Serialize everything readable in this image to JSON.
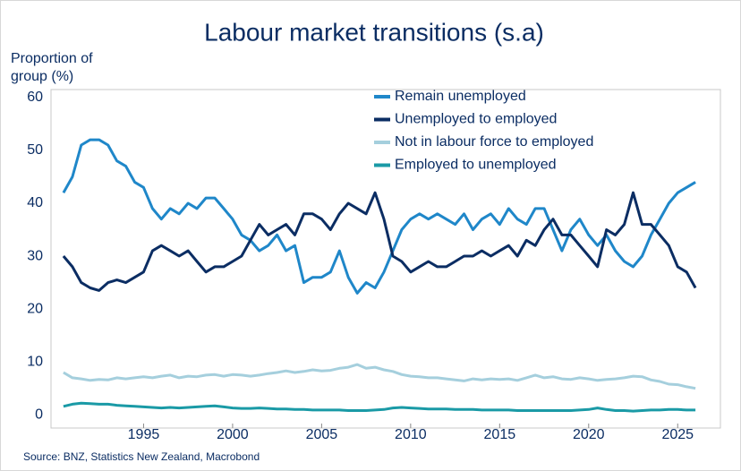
{
  "chart_data": {
    "type": "line",
    "title": "Labour market transitions (s.a)",
    "ylabel_lines": [
      "Proportion of",
      "group (%)"
    ],
    "source": "Source: BNZ, Statistics New Zealand, Macrobond",
    "x": [
      1990.5,
      1991,
      1991.5,
      1992,
      1992.5,
      1993,
      1993.5,
      1994,
      1994.5,
      1995,
      1995.5,
      1996,
      1996.5,
      1997,
      1997.5,
      1998,
      1998.5,
      1999,
      1999.5,
      2000,
      2000.5,
      2001,
      2001.5,
      2002,
      2002.5,
      2003,
      2003.5,
      2004,
      2004.5,
      2005,
      2005.5,
      2006,
      2006.5,
      2007,
      2007.5,
      2008,
      2008.5,
      2009,
      2009.5,
      2010,
      2010.5,
      2011,
      2011.5,
      2012,
      2012.5,
      2013,
      2013.5,
      2014,
      2014.5,
      2015,
      2015.5,
      2016,
      2016.5,
      2017,
      2017.5,
      2018,
      2018.5,
      2019,
      2019.5,
      2020,
      2020.5,
      2021,
      2021.5,
      2022,
      2022.5,
      2023,
      2023.5,
      2024,
      2024.5,
      2025,
      2025.5,
      2026
    ],
    "series": [
      {
        "name": "Remain unemployed",
        "color": "#1f87c9",
        "values": [
          42,
          45,
          51,
          52,
          52,
          51,
          48,
          47,
          44,
          43,
          39,
          37,
          39,
          38,
          40,
          39,
          41,
          41,
          39,
          37,
          34,
          33,
          31,
          32,
          34,
          31,
          32,
          25,
          26,
          26,
          27,
          31,
          26,
          23,
          25,
          24,
          27,
          31,
          35,
          37,
          38,
          37,
          38,
          37,
          36,
          38,
          35,
          37,
          38,
          36,
          39,
          37,
          36,
          39,
          39,
          35,
          31,
          35,
          37,
          34,
          32,
          34,
          31,
          29,
          28,
          30,
          34,
          37,
          40,
          42,
          43,
          44
        ]
      },
      {
        "name": "Unemployed to employed",
        "color": "#0b2d63",
        "values": [
          30,
          28,
          25,
          24,
          23.5,
          25,
          25.5,
          25,
          26,
          27,
          31,
          32,
          31,
          30,
          31,
          29,
          27,
          28,
          28,
          29,
          30,
          33,
          36,
          34,
          35,
          36,
          34,
          38,
          38,
          37,
          35,
          38,
          40,
          39,
          38,
          42,
          37,
          30,
          29,
          27,
          28,
          29,
          28,
          28,
          29,
          30,
          30,
          31,
          30,
          31,
          32,
          30,
          33,
          32,
          35,
          37,
          34,
          34,
          32,
          30,
          28,
          35,
          34,
          36,
          42,
          36,
          36,
          34,
          32,
          28,
          27,
          24
        ]
      },
      {
        "name": "Not in labour force to employed",
        "color": "#a5cfdd",
        "values": [
          8,
          7,
          6.8,
          6.5,
          6.7,
          6.6,
          7,
          6.8,
          7,
          7.2,
          7,
          7.3,
          7.5,
          7,
          7.3,
          7.2,
          7.5,
          7.6,
          7.3,
          7.6,
          7.5,
          7.3,
          7.5,
          7.8,
          8,
          8.3,
          8,
          8.2,
          8.5,
          8.3,
          8.4,
          8.8,
          9,
          9.5,
          8.8,
          9,
          8.5,
          8.2,
          7.6,
          7.3,
          7.2,
          7,
          7,
          6.8,
          6.6,
          6.4,
          6.8,
          6.6,
          6.8,
          6.7,
          6.8,
          6.5,
          7,
          7.5,
          7,
          7.2,
          6.8,
          6.7,
          7,
          6.8,
          6.5,
          6.7,
          6.8,
          7,
          7.3,
          7.2,
          6.6,
          6.3,
          5.8,
          5.7,
          5.3,
          5
        ]
      },
      {
        "name": "Employed to unemployed",
        "color": "#1a9aa6",
        "values": [
          1.6,
          2,
          2.2,
          2.1,
          2,
          2,
          1.8,
          1.7,
          1.6,
          1.5,
          1.4,
          1.3,
          1.4,
          1.3,
          1.4,
          1.5,
          1.6,
          1.7,
          1.5,
          1.3,
          1.2,
          1.2,
          1.3,
          1.2,
          1.1,
          1.1,
          1,
          1,
          0.9,
          0.9,
          0.9,
          0.9,
          0.8,
          0.8,
          0.8,
          0.9,
          1,
          1.3,
          1.4,
          1.3,
          1.2,
          1.1,
          1.1,
          1.1,
          1,
          1,
          1,
          0.9,
          0.9,
          0.9,
          0.9,
          0.8,
          0.8,
          0.8,
          0.8,
          0.8,
          0.8,
          0.8,
          0.9,
          1,
          1.3,
          1,
          0.8,
          0.8,
          0.7,
          0.8,
          0.9,
          0.9,
          1,
          1,
          0.9,
          0.9
        ]
      }
    ],
    "xlim": [
      1989.8,
      2027.4
    ],
    "ylim": [
      -2.5,
      61.5
    ],
    "xticks": [
      1995,
      2000,
      2005,
      2010,
      2015,
      2020,
      2025
    ],
    "yticks": [
      0,
      10,
      20,
      30,
      40,
      50,
      60
    ],
    "grid": false,
    "legend": "top-right"
  }
}
